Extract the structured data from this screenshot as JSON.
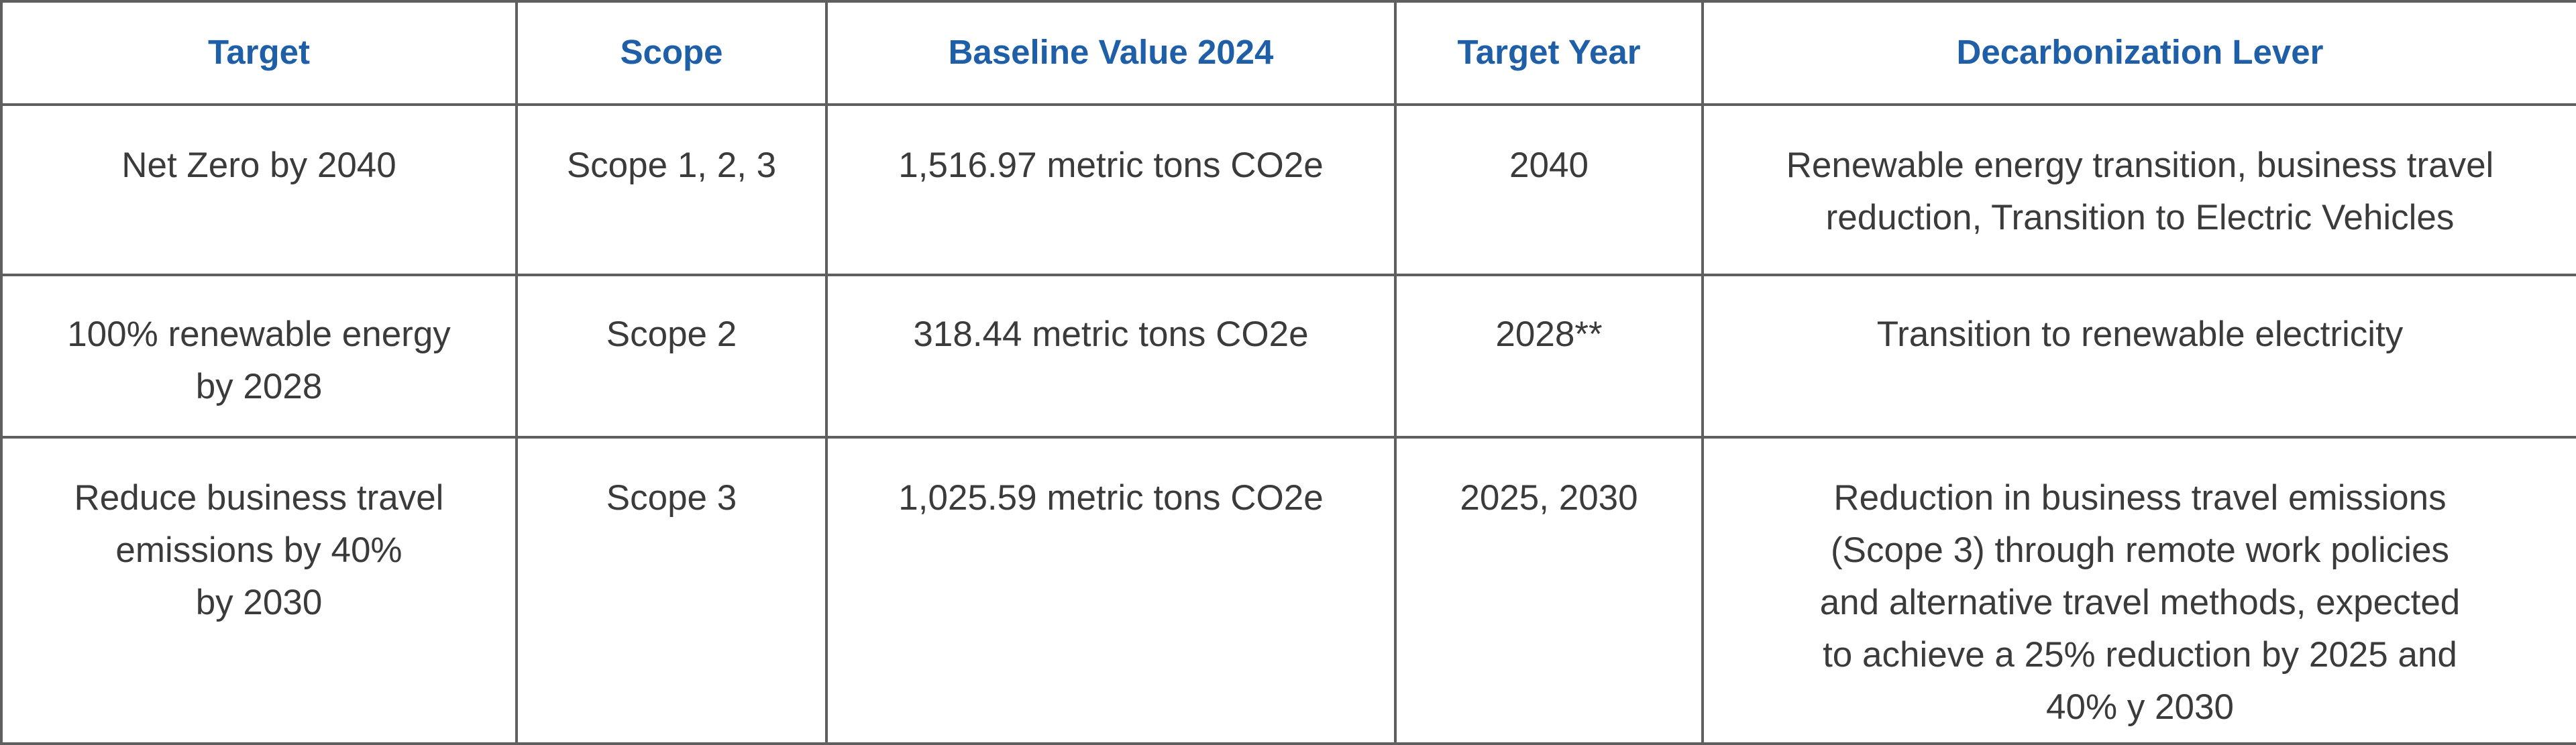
{
  "table": {
    "headers": [
      "Target",
      "Scope",
      "Baseline Value 2024",
      "Target Year",
      "Decarbonization Lever"
    ],
    "rows": [
      {
        "target": [
          "Net Zero by 2040"
        ],
        "scope": "Scope 1, 2, 3",
        "baseline": "1,516.97 metric tons CO2e",
        "year": "2040",
        "lever": [
          "Renewable energy transition, business travel",
          "reduction, Transition to Electric Vehicles"
        ]
      },
      {
        "target": [
          "100% renewable energy",
          "by 2028"
        ],
        "scope": "Scope 2",
        "baseline": "318.44 metric tons CO2e",
        "year": "2028**",
        "lever": [
          "Transition to renewable electricity"
        ]
      },
      {
        "target": [
          "Reduce business travel",
          "emissions by 40%",
          "by 2030"
        ],
        "scope": "Scope 3",
        "baseline": "1,025.59 metric tons CO2e",
        "year": "2025, 2030",
        "lever": [
          "Reduction in business travel emissions",
          "(Scope 3) through remote work policies",
          "and alternative travel methods, expected",
          "to achieve a 25% reduction by 2025 and",
          "40% y 2030"
        ]
      }
    ]
  },
  "colors": {
    "header_text": "#1f5fa8",
    "body_text": "#3b3b3b",
    "border": "#5f5f5f"
  }
}
